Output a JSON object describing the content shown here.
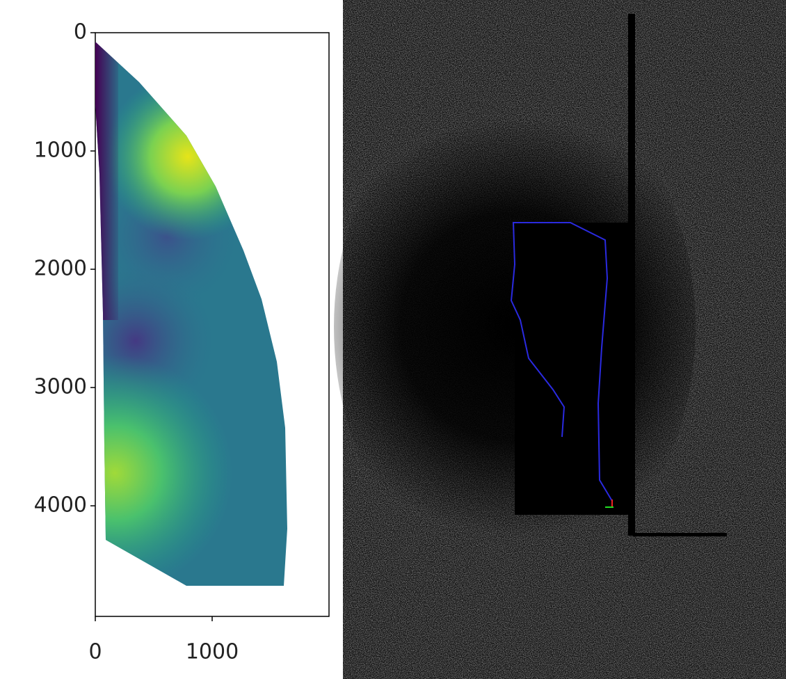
{
  "chart_data": {
    "type": "image",
    "xlim": [
      0,
      2000
    ],
    "ylim": [
      4935,
      0
    ],
    "xticks": [
      0,
      1000
    ],
    "yticks": [
      0,
      1000,
      2000,
      3000,
      4000
    ]
  }
}
